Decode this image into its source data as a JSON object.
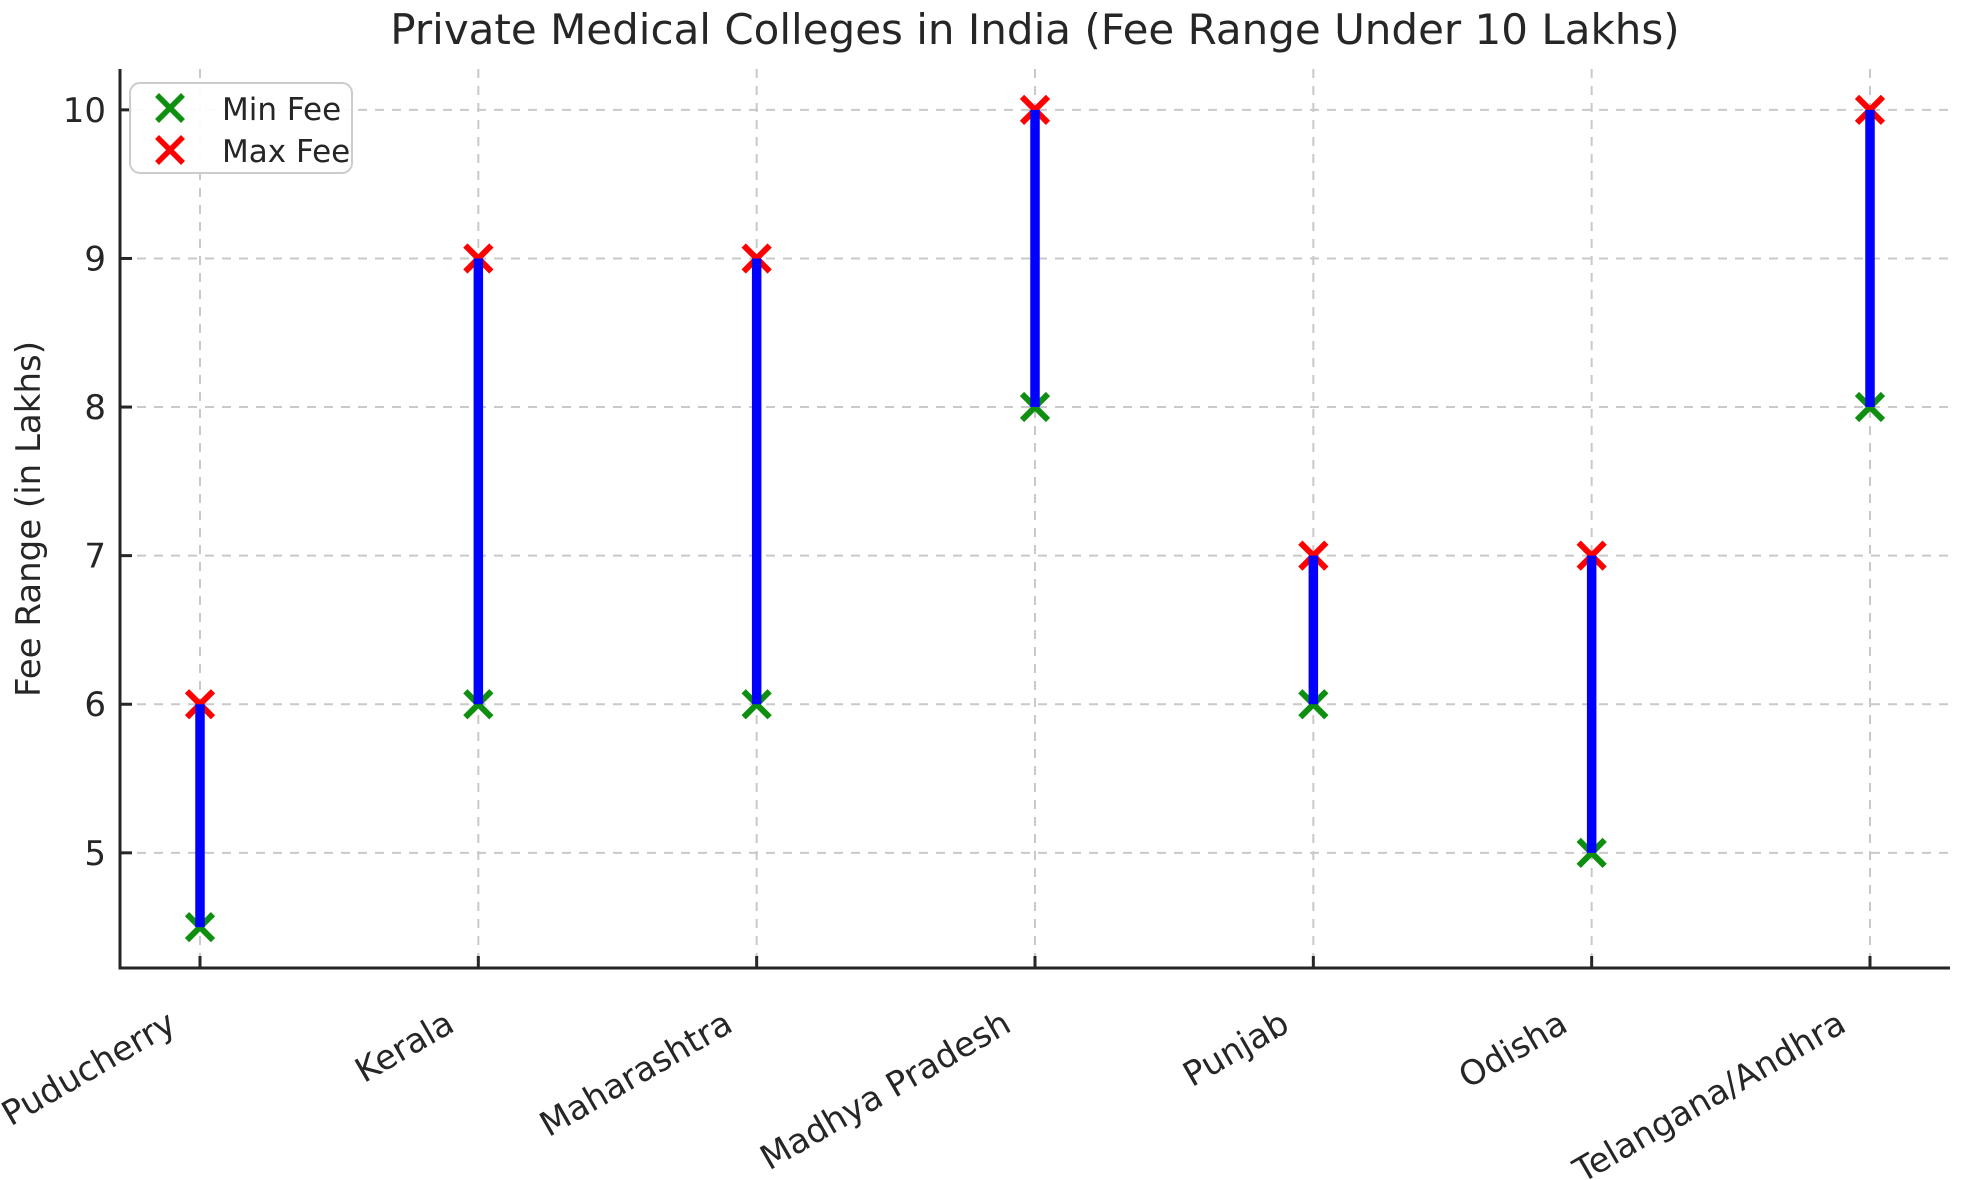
{
  "chart_data": {
    "type": "scatter",
    "subtype": "vertical-range-plot",
    "title": "Private Medical Colleges in India (Fee Range Under 10 Lakhs)",
    "xlabel": "",
    "ylabel": "Fee Range (in Lakhs)",
    "categories": [
      "Puducherry",
      "Kerala",
      "Maharashtra",
      "Madhya Pradesh",
      "Punjab",
      "Odisha",
      "Telangana/Andhra"
    ],
    "series": [
      {
        "name": "Min Fee",
        "marker": "x",
        "color": "#0f8f0f",
        "values": [
          4.5,
          6,
          6,
          8,
          6,
          5,
          8
        ]
      },
      {
        "name": "Max Fee",
        "marker": "x",
        "color": "#ff0000",
        "values": [
          6,
          9,
          9,
          10,
          7,
          7,
          10
        ]
      }
    ],
    "range_connector": {
      "color": "#0000ff",
      "description": "thick vertical blue line from Min Fee to Max Fee for each state"
    },
    "yticks": [
      5,
      6,
      7,
      8,
      9,
      10
    ],
    "ylim": [
      4.225,
      10.275
    ],
    "grid": true,
    "grid_style": "dashed",
    "legend": {
      "position": "upper left",
      "entries": [
        "Min Fee",
        "Max Fee"
      ]
    },
    "colors": {
      "grid": "#c9c9c9",
      "axis": "#262626",
      "text": "#262626",
      "legend_border": "#cccccc",
      "background": "#ffffff"
    }
  }
}
